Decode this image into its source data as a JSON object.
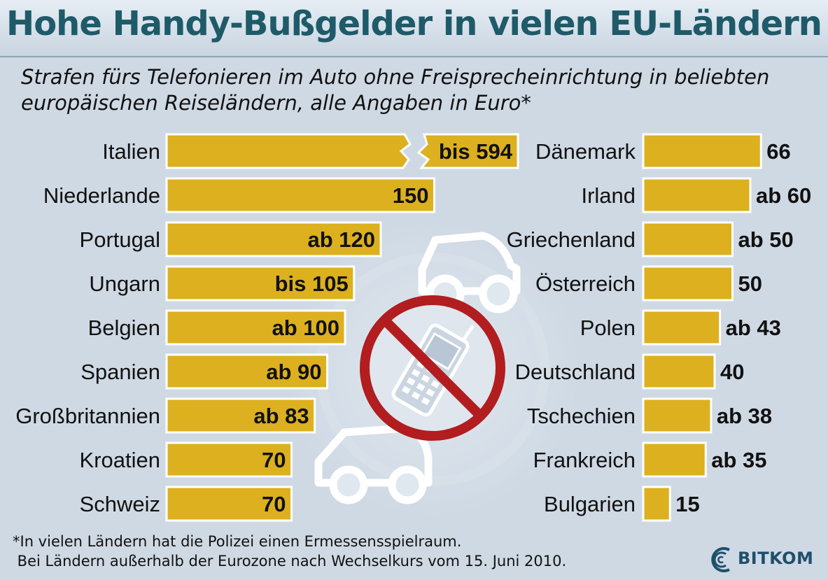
{
  "title": "Hohe Handy-Bußgelder in vielen EU-Ländern",
  "subtitle_line1": "Strafen fürs Telefonieren im Auto ohne Freisprecheinrichtung in beliebten",
  "subtitle_line2": "europäischen Reiseländern, alle Angaben in Euro*",
  "footnote_line1": "*In vielen Ländern hat die Polizei einen Ermessensspielraum.",
  "footnote_line2": " Bei Ländern außerhalb der Eurozone nach Wechselkurs vom 15. Juni 2010.",
  "logo_text": "BITKOM",
  "colors": {
    "bar": "#dcb01f",
    "prohibition": "#b21d1f",
    "title": "#1f5a69"
  },
  "chart_data": [
    {
      "type": "bar",
      "orientation": "horizontal",
      "categories": [
        "Italien",
        "Niederlande",
        "Portugal",
        "Ungarn",
        "Belgien",
        "Spanien",
        "Großbritannien",
        "Kroatien",
        "Schweiz"
      ],
      "values": [
        594,
        150,
        120,
        105,
        100,
        90,
        83,
        70,
        70
      ],
      "labels": [
        "bis 594",
        "150",
        "ab 120",
        "bis 105",
        "ab 100",
        "ab 90",
        "ab 83",
        "70",
        "70"
      ],
      "broken_axis": [
        "Italien"
      ]
    },
    {
      "type": "bar",
      "orientation": "horizontal",
      "categories": [
        "Dänemark",
        "Irland",
        "Griechenland",
        "Österreich",
        "Polen",
        "Deutschland",
        "Tschechien",
        "Frankreich",
        "Bulgarien"
      ],
      "values": [
        66,
        60,
        50,
        50,
        43,
        40,
        38,
        35,
        15
      ],
      "labels": [
        "66",
        "ab 60",
        "ab 50",
        "50",
        "ab 43",
        "40",
        "ab 38",
        "ab 35",
        "15"
      ]
    }
  ]
}
